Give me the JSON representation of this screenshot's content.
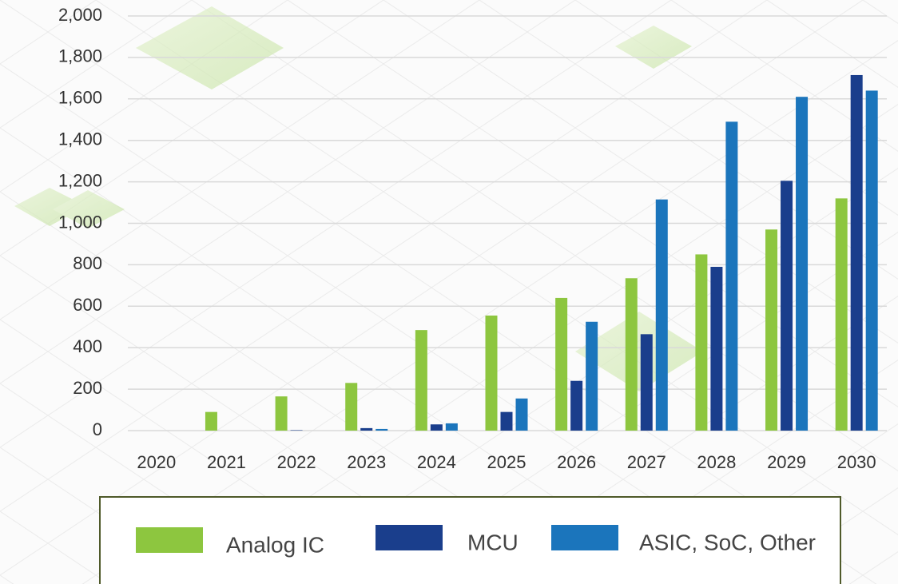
{
  "chart_data": {
    "type": "bar",
    "categories": [
      "2020",
      "2021",
      "2022",
      "2023",
      "2024",
      "2025",
      "2026",
      "2027",
      "2028",
      "2029",
      "2030"
    ],
    "series": [
      {
        "name": "Analog IC",
        "color": "#8dc63f",
        "values": [
          0,
          90,
          165,
          230,
          485,
          555,
          640,
          735,
          850,
          970,
          1120
        ]
      },
      {
        "name": "MCU",
        "color": "#1a3e8c",
        "values": [
          0,
          0,
          2,
          12,
          30,
          90,
          240,
          465,
          790,
          1205,
          1715
        ]
      },
      {
        "name": "ASIC, SoC, Other",
        "color": "#1b75bc",
        "values": [
          0,
          0,
          0,
          8,
          35,
          155,
          525,
          1115,
          1490,
          1610,
          1640
        ]
      }
    ],
    "ylim": [
      0,
      2000
    ],
    "yticks": [
      0,
      200,
      400,
      600,
      800,
      {
        "value": 1000,
        "label": "1,000"
      },
      {
        "value": 1200,
        "label": "1,200"
      },
      {
        "value": 1400,
        "label": "1,400"
      },
      {
        "value": 1600,
        "label": "1,600"
      },
      {
        "value": 1800,
        "label": "1,800"
      },
      {
        "value": 2000,
        "label": "2,000"
      }
    ],
    "grid": true,
    "legend": "bottom"
  }
}
